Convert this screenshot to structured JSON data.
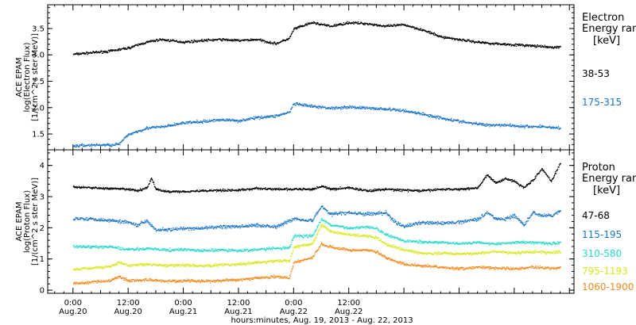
{
  "chart_data": [
    {
      "type": "scatter",
      "ylabel_lines": [
        "ACE EPAM",
        "log(Electron Flux)",
        "[1/(cm^2 s ster MeV)]"
      ],
      "ylim": [
        1.2,
        3.95
      ],
      "yticks": [
        1.5,
        2.0,
        2.5,
        3.0,
        3.5
      ],
      "ytick_labels": [
        "1.5",
        "2.0",
        "2.5",
        "3.0",
        "3.5"
      ],
      "legend_title_lines": [
        "Electron",
        "Energy ranges",
        "[keV]"
      ],
      "series": [
        {
          "name": "38-53",
          "color": "#000000",
          "points": [
            [
              0,
              3.02
            ],
            [
              4,
              3.05
            ],
            [
              8,
              3.08
            ],
            [
              12,
              3.14
            ],
            [
              16,
              3.25
            ],
            [
              19,
              3.3
            ],
            [
              24,
              3.25
            ],
            [
              28,
              3.28
            ],
            [
              32,
              3.3
            ],
            [
              36,
              3.28
            ],
            [
              40,
              3.3
            ],
            [
              44,
              3.22
            ],
            [
              47,
              3.32
            ],
            [
              48,
              3.5
            ],
            [
              52,
              3.62
            ],
            [
              56,
              3.55
            ],
            [
              60,
              3.62
            ],
            [
              64,
              3.6
            ],
            [
              68,
              3.55
            ],
            [
              72,
              3.58
            ],
            [
              76,
              3.48
            ],
            [
              80,
              3.35
            ],
            [
              84,
              3.3
            ],
            [
              88,
              3.25
            ],
            [
              92,
              3.22
            ],
            [
              96,
              3.2
            ],
            [
              100,
              3.18
            ],
            [
              104,
              3.15
            ],
            [
              106,
              3.16
            ]
          ],
          "noise": 0.025
        },
        {
          "name": "175-315",
          "color": "#1a74c7",
          "points": [
            [
              0,
              1.28
            ],
            [
              4,
              1.3
            ],
            [
              8,
              1.3
            ],
            [
              10,
              1.32
            ],
            [
              12,
              1.5
            ],
            [
              16,
              1.62
            ],
            [
              20,
              1.65
            ],
            [
              24,
              1.72
            ],
            [
              28,
              1.74
            ],
            [
              32,
              1.78
            ],
            [
              36,
              1.76
            ],
            [
              40,
              1.82
            ],
            [
              44,
              1.85
            ],
            [
              47,
              1.92
            ],
            [
              48,
              2.08
            ],
            [
              52,
              2.03
            ],
            [
              56,
              2.0
            ],
            [
              60,
              2.02
            ],
            [
              64,
              2.0
            ],
            [
              68,
              1.98
            ],
            [
              72,
              1.95
            ],
            [
              74,
              1.92
            ],
            [
              78,
              1.85
            ],
            [
              82,
              1.78
            ],
            [
              86,
              1.72
            ],
            [
              90,
              1.68
            ],
            [
              94,
              1.68
            ],
            [
              98,
              1.65
            ],
            [
              102,
              1.65
            ],
            [
              106,
              1.62
            ]
          ],
          "noise": 0.03
        }
      ]
    },
    {
      "type": "scatter",
      "ylabel_lines": [
        "ACE EPAM",
        "log(Proton Flux)",
        "[1/(cm^2 s ster MeV)]"
      ],
      "ylim": [
        -0.1,
        4.5
      ],
      "yticks": [
        0,
        1,
        2,
        3,
        4
      ],
      "ytick_labels": [
        "0",
        "1",
        "2",
        "3",
        "4"
      ],
      "legend_title_lines": [
        "Proton",
        "Energy ranges",
        "[keV]"
      ],
      "series": [
        {
          "name": "47-68",
          "color": "#000000",
          "points": [
            [
              0,
              3.32
            ],
            [
              4,
              3.3
            ],
            [
              8,
              3.27
            ],
            [
              12,
              3.25
            ],
            [
              14,
              3.2
            ],
            [
              16,
              3.3
            ],
            [
              17,
              3.6
            ],
            [
              18,
              3.25
            ],
            [
              20,
              3.18
            ],
            [
              24,
              3.18
            ],
            [
              28,
              3.2
            ],
            [
              32,
              3.22
            ],
            [
              36,
              3.22
            ],
            [
              40,
              3.28
            ],
            [
              44,
              3.25
            ],
            [
              48,
              3.25
            ],
            [
              52,
              3.25
            ],
            [
              54,
              3.35
            ],
            [
              56,
              3.25
            ],
            [
              60,
              3.3
            ],
            [
              64,
              3.2
            ],
            [
              68,
              3.25
            ],
            [
              72,
              3.22
            ],
            [
              76,
              3.2
            ],
            [
              80,
              3.25
            ],
            [
              84,
              3.25
            ],
            [
              88,
              3.3
            ],
            [
              90,
              3.7
            ],
            [
              92,
              3.45
            ],
            [
              94,
              3.6
            ],
            [
              96,
              3.5
            ],
            [
              98,
              3.3
            ],
            [
              100,
              3.55
            ],
            [
              102,
              3.9
            ],
            [
              104,
              3.5
            ],
            [
              106,
              4.1
            ]
          ],
          "noise": 0.04
        },
        {
          "name": "115-195",
          "color": "#1a74c7",
          "points": [
            [
              0,
              2.32
            ],
            [
              4,
              2.3
            ],
            [
              8,
              2.25
            ],
            [
              12,
              2.2
            ],
            [
              14,
              2.1
            ],
            [
              16,
              2.25
            ],
            [
              18,
              1.95
            ],
            [
              20,
              1.95
            ],
            [
              24,
              1.98
            ],
            [
              28,
              2.0
            ],
            [
              32,
              2.05
            ],
            [
              36,
              2.05
            ],
            [
              40,
              2.1
            ],
            [
              44,
              2.05
            ],
            [
              48,
              2.3
            ],
            [
              52,
              2.25
            ],
            [
              54,
              2.7
            ],
            [
              56,
              2.45
            ],
            [
              60,
              2.5
            ],
            [
              64,
              2.45
            ],
            [
              68,
              2.5
            ],
            [
              70,
              2.2
            ],
            [
              72,
              2.05
            ],
            [
              76,
              2.2
            ],
            [
              80,
              2.15
            ],
            [
              84,
              2.2
            ],
            [
              88,
              2.3
            ],
            [
              90,
              2.5
            ],
            [
              92,
              2.3
            ],
            [
              94,
              2.3
            ],
            [
              96,
              2.4
            ],
            [
              98,
              2.1
            ],
            [
              100,
              2.5
            ],
            [
              102,
              2.4
            ],
            [
              104,
              2.4
            ],
            [
              106,
              2.55
            ]
          ],
          "noise": 0.06
        },
        {
          "name": "310-580",
          "color": "#26d9c8",
          "points": [
            [
              0,
              1.42
            ],
            [
              4,
              1.4
            ],
            [
              8,
              1.4
            ],
            [
              12,
              1.32
            ],
            [
              16,
              1.35
            ],
            [
              20,
              1.3
            ],
            [
              24,
              1.32
            ],
            [
              28,
              1.28
            ],
            [
              32,
              1.3
            ],
            [
              36,
              1.28
            ],
            [
              40,
              1.32
            ],
            [
              44,
              1.35
            ],
            [
              47,
              1.38
            ],
            [
              48,
              1.75
            ],
            [
              52,
              1.75
            ],
            [
              54,
              2.3
            ],
            [
              56,
              2.1
            ],
            [
              60,
              2.0
            ],
            [
              64,
              2.05
            ],
            [
              66,
              2.0
            ],
            [
              68,
              1.8
            ],
            [
              72,
              1.6
            ],
            [
              76,
              1.55
            ],
            [
              80,
              1.55
            ],
            [
              84,
              1.5
            ],
            [
              88,
              1.55
            ],
            [
              92,
              1.5
            ],
            [
              96,
              1.55
            ],
            [
              100,
              1.55
            ],
            [
              104,
              1.5
            ],
            [
              106,
              1.55
            ]
          ],
          "noise": 0.05
        },
        {
          "name": "795-1193",
          "color": "#d8e61c",
          "points": [
            [
              0,
              0.68
            ],
            [
              4,
              0.72
            ],
            [
              8,
              0.78
            ],
            [
              10,
              0.9
            ],
            [
              12,
              0.8
            ],
            [
              16,
              0.85
            ],
            [
              20,
              0.8
            ],
            [
              24,
              0.82
            ],
            [
              28,
              0.8
            ],
            [
              32,
              0.82
            ],
            [
              36,
              0.85
            ],
            [
              40,
              0.9
            ],
            [
              44,
              0.95
            ],
            [
              47,
              0.95
            ],
            [
              48,
              1.4
            ],
            [
              52,
              1.5
            ],
            [
              54,
              2.1
            ],
            [
              56,
              1.9
            ],
            [
              60,
              1.8
            ],
            [
              64,
              1.75
            ],
            [
              66,
              1.7
            ],
            [
              68,
              1.5
            ],
            [
              72,
              1.3
            ],
            [
              76,
              1.2
            ],
            [
              80,
              1.2
            ],
            [
              84,
              1.18
            ],
            [
              88,
              1.2
            ],
            [
              92,
              1.25
            ],
            [
              96,
              1.2
            ],
            [
              100,
              1.25
            ],
            [
              104,
              1.22
            ],
            [
              106,
              1.25
            ]
          ],
          "noise": 0.05
        },
        {
          "name": "1060-1900",
          "color": "#f08a1c",
          "points": [
            [
              0,
              0.22
            ],
            [
              4,
              0.28
            ],
            [
              8,
              0.32
            ],
            [
              10,
              0.45
            ],
            [
              12,
              0.32
            ],
            [
              16,
              0.35
            ],
            [
              20,
              0.3
            ],
            [
              24,
              0.32
            ],
            [
              28,
              0.3
            ],
            [
              32,
              0.32
            ],
            [
              36,
              0.35
            ],
            [
              40,
              0.4
            ],
            [
              44,
              0.45
            ],
            [
              47,
              0.4
            ],
            [
              48,
              0.9
            ],
            [
              52,
              1.05
            ],
            [
              54,
              1.5
            ],
            [
              56,
              1.4
            ],
            [
              60,
              1.3
            ],
            [
              64,
              1.3
            ],
            [
              66,
              1.25
            ],
            [
              68,
              1.05
            ],
            [
              72,
              0.85
            ],
            [
              76,
              0.8
            ],
            [
              80,
              0.75
            ],
            [
              84,
              0.7
            ],
            [
              88,
              0.75
            ],
            [
              92,
              0.72
            ],
            [
              96,
              0.7
            ],
            [
              100,
              0.75
            ],
            [
              104,
              0.72
            ],
            [
              106,
              0.75
            ]
          ],
          "noise": 0.05
        }
      ]
    }
  ],
  "x_axis": {
    "range_hours": [
      -5.5,
      109
    ],
    "ticks": [
      {
        "hour": 0,
        "time": "0:00",
        "date": "Aug.20"
      },
      {
        "hour": 12,
        "time": "12:00",
        "date": "Aug.20"
      },
      {
        "hour": 24,
        "time": "0:00",
        "date": "Aug.21"
      },
      {
        "hour": 36,
        "time": "12:00",
        "date": "Aug.21"
      },
      {
        "hour": 48,
        "time": "0:00",
        "date": "Aug.22"
      },
      {
        "hour": 60,
        "time": "12:00",
        "date": "Aug.22"
      }
    ],
    "xlabel": "hours:minutes, Aug. 19, 2013 - Aug. 22, 2013"
  }
}
